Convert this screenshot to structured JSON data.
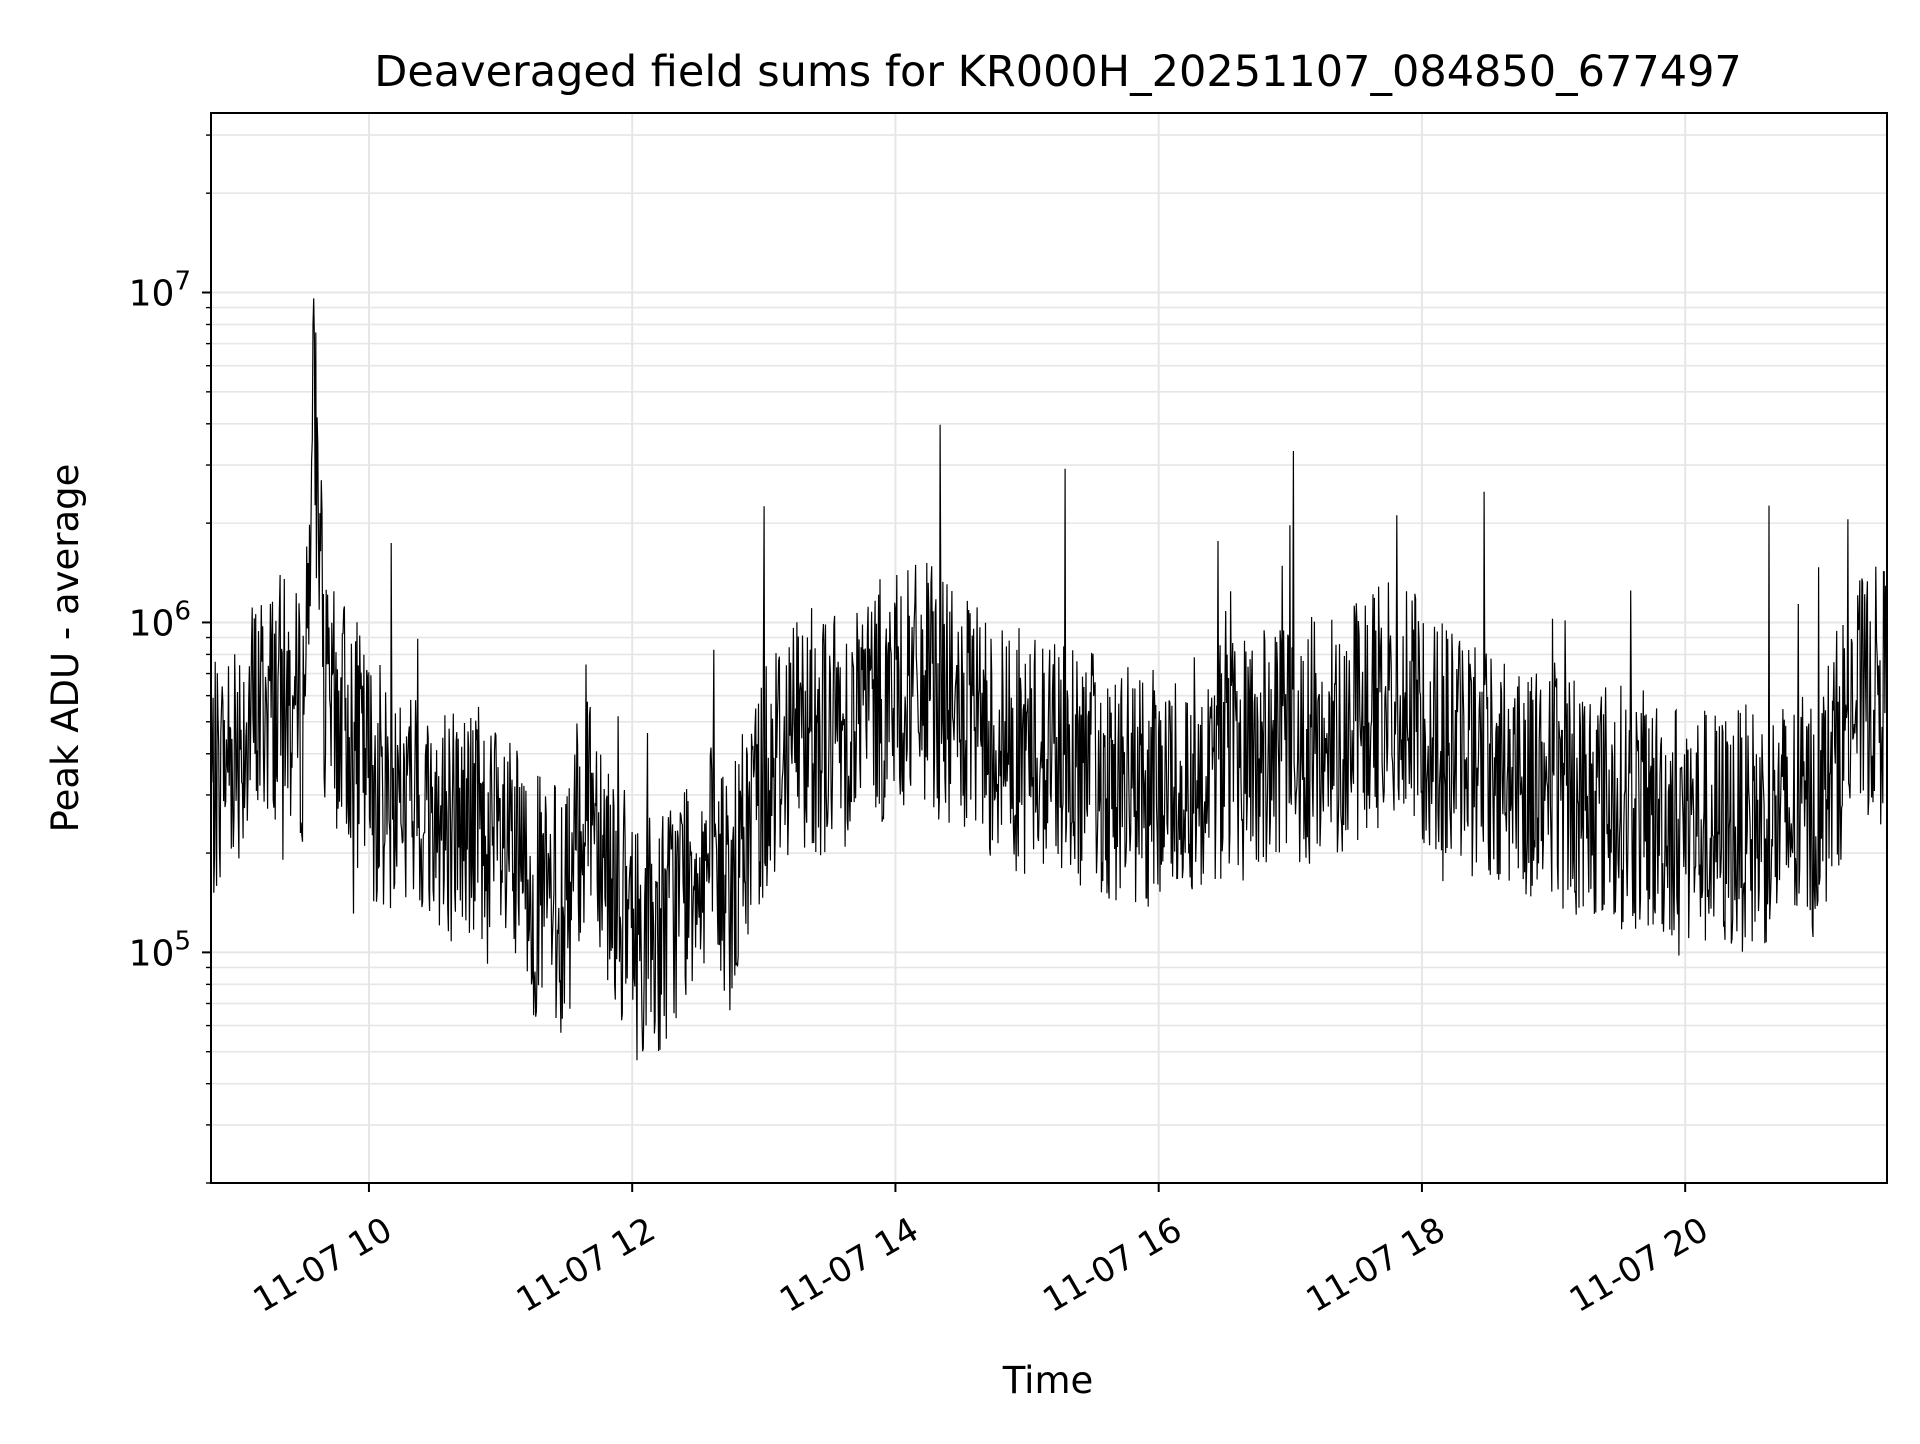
{
  "chart_data": {
    "type": "line",
    "title": "Deaveraged field sums for KR000H_20251107_084850_677497",
    "xlabel": "Time",
    "ylabel": "Peak ADU - average",
    "yscale": "log",
    "xlim": [
      "2025-11-07T08:48",
      "2025-11-07T21:32"
    ],
    "ylim": [
      20000,
      35000000
    ],
    "grid": true,
    "line_color": "#000000",
    "x_ticks": [
      {
        "value": "2025-11-07T10:00",
        "label": "11-07 10"
      },
      {
        "value": "2025-11-07T12:00",
        "label": "11-07 12"
      },
      {
        "value": "2025-11-07T14:00",
        "label": "11-07 14"
      },
      {
        "value": "2025-11-07T16:00",
        "label": "11-07 16"
      },
      {
        "value": "2025-11-07T18:00",
        "label": "11-07 18"
      },
      {
        "value": "2025-11-07T20:00",
        "label": "11-07 20"
      }
    ],
    "y_ticks": [
      {
        "value": 100000,
        "base": "10",
        "exp": "5"
      },
      {
        "value": 1000000,
        "base": "10",
        "exp": "6"
      },
      {
        "value": 10000000,
        "base": "10",
        "exp": "7"
      }
    ],
    "series": [
      {
        "values_description_note": "",
        "x": [
          "2025-11-07T08:48",
          "2025-11-07T08:55",
          "2025-11-07T09:00",
          "2025-11-07T09:10",
          "2025-11-07T09:20",
          "2025-11-07T09:30",
          "2025-11-07T09:35",
          "2025-11-07T09:40",
          "2025-11-07T09:50",
          "2025-11-07T10:00",
          "2025-11-07T10:10",
          "2025-11-07T10:20",
          "2025-11-07T10:30",
          "2025-11-07T10:45",
          "2025-11-07T11:00",
          "2025-11-07T11:15",
          "2025-11-07T11:30",
          "2025-11-07T11:40",
          "2025-11-07T11:50",
          "2025-11-07T12:00",
          "2025-11-07T12:15",
          "2025-11-07T12:30",
          "2025-11-07T12:45",
          "2025-11-07T13:00",
          "2025-11-07T13:15",
          "2025-11-07T13:30",
          "2025-11-07T13:45",
          "2025-11-07T14:00",
          "2025-11-07T14:15",
          "2025-11-07T14:30",
          "2025-11-07T14:45",
          "2025-11-07T15:00",
          "2025-11-07T15:15",
          "2025-11-07T15:30",
          "2025-11-07T15:45",
          "2025-11-07T16:00",
          "2025-11-07T16:15",
          "2025-11-07T16:30",
          "2025-11-07T16:45",
          "2025-11-07T17:00",
          "2025-11-07T17:15",
          "2025-11-07T17:30",
          "2025-11-07T17:45",
          "2025-11-07T18:00",
          "2025-11-07T18:15",
          "2025-11-07T18:30",
          "2025-11-07T18:45",
          "2025-11-07T19:00",
          "2025-11-07T19:15",
          "2025-11-07T19:30",
          "2025-11-07T19:45",
          "2025-11-07T20:00",
          "2025-11-07T20:15",
          "2025-11-07T20:30",
          "2025-11-07T20:45",
          "2025-11-07T21:00",
          "2025-11-07T21:15",
          "2025-11-07T21:30"
        ],
        "values": [
          300000,
          400000,
          450000,
          550000,
          600000,
          500000,
          5000000,
          550000,
          500000,
          350000,
          300000,
          280000,
          260000,
          250000,
          200000,
          150000,
          130000,
          350000,
          180000,
          110000,
          120000,
          200000,
          150000,
          350000,
          500000,
          450000,
          550000,
          600000,
          650000,
          500000,
          450000,
          400000,
          420000,
          350000,
          320000,
          300000,
          350000,
          380000,
          400000,
          420000,
          450000,
          500000,
          600000,
          500000,
          420000,
          380000,
          350000,
          320000,
          300000,
          280000,
          260000,
          250000,
          230000,
          240000,
          250000,
          260000,
          550000,
          650000
        ]
      }
    ]
  }
}
